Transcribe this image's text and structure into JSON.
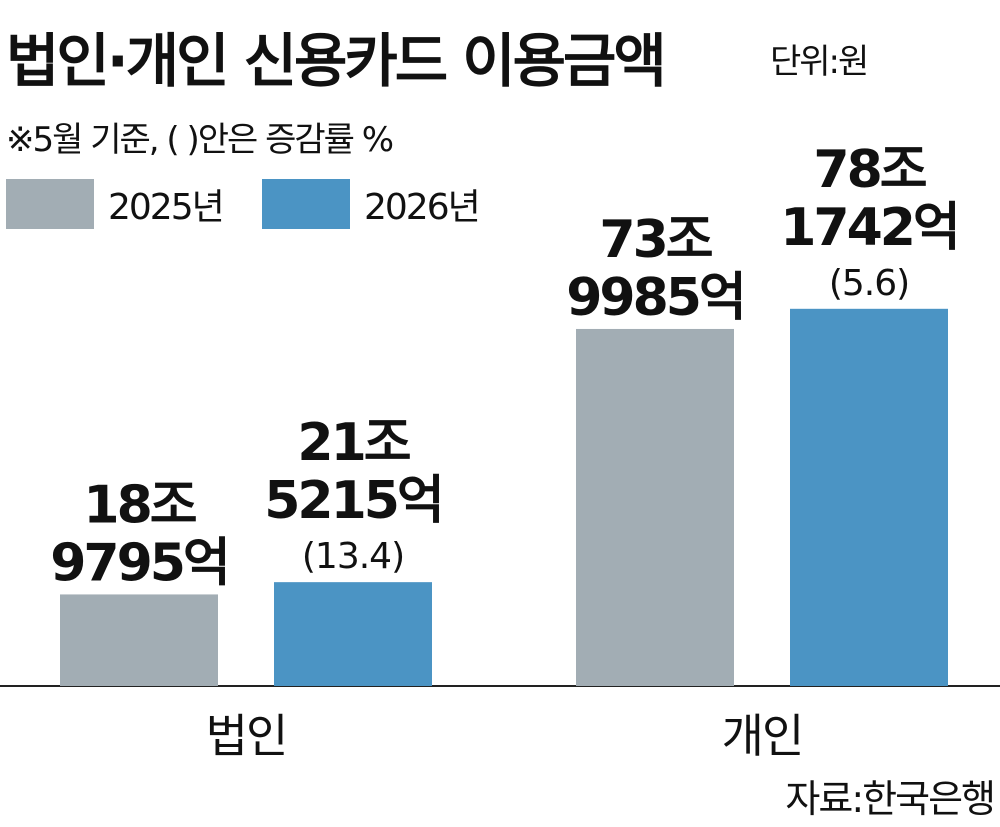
{
  "title": "법인·개인 신용카드 이용금액",
  "unit": "단위:원",
  "note": "※5월 기준, (  )안은 증감률  %",
  "source": "자료:한국은행",
  "chart_data": {
    "type": "bar",
    "categories": [
      "법인",
      "개인"
    ],
    "series": [
      {
        "name": "2025년",
        "color": "#a2adb4",
        "values": [
          18.9795,
          73.9985
        ],
        "labels": [
          [
            "18조",
            "9795억"
          ],
          [
            "73조",
            "9985억"
          ]
        ],
        "changes": [
          "",
          ""
        ]
      },
      {
        "name": "2026년",
        "color": "#4b94c4",
        "values": [
          21.5215,
          78.1742
        ],
        "labels": [
          [
            "21조",
            "5215억"
          ],
          [
            "78조",
            "1742억"
          ]
        ],
        "changes": [
          "(13.4)",
          "(5.6)"
        ]
      }
    ],
    "ylim": [
      0,
      80
    ],
    "grid": false,
    "legend": "top-left",
    "xlabel": "",
    "ylabel": ""
  }
}
